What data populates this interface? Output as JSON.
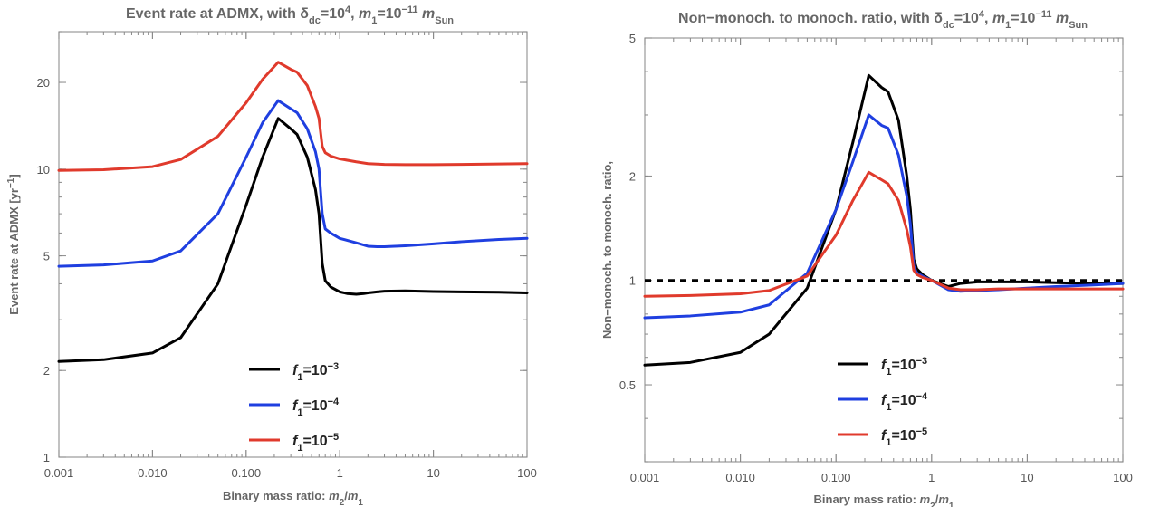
{
  "chart_data": [
    {
      "type": "line",
      "title": {
        "pre": "Event rate at ADMX, with δ",
        "sub1": "dc",
        "mid1": "=10",
        "sup1": "4",
        "mid2": ", m",
        "sub2": "1",
        "mid3": "=10",
        "sup2": "−11",
        "mid4": " m",
        "sub3": "Sun"
      },
      "xlabel": {
        "pre": "Binary mass ratio: m",
        "sub1": "2",
        "mid": "/m",
        "sub2": "1"
      },
      "ylabel": {
        "pre": "Event rate at ADMX [yr",
        "sup": "−1",
        "post": "]"
      },
      "x_scale": "log",
      "y_scale": "log",
      "xlim": [
        0.001,
        100
      ],
      "ylim": [
        1,
        30
      ],
      "x_ticks": [
        0.001,
        0.01,
        0.1,
        1,
        10,
        100
      ],
      "x_tick_labels": [
        "0.001",
        "0.010",
        "0.100",
        "1",
        "10",
        "100"
      ],
      "y_ticks": [
        1,
        2,
        5,
        10,
        20
      ],
      "y_tick_labels": [
        "1",
        "2",
        "5",
        "10",
        "20"
      ],
      "legend_position": "bottom-center",
      "series": [
        {
          "name": {
            "pre": "f",
            "sub": "1",
            "mid": "=10",
            "sup": "−3"
          },
          "color": "#000000",
          "x": [
            0.001,
            0.003,
            0.01,
            0.02,
            0.05,
            0.1,
            0.15,
            0.22,
            0.3,
            0.35,
            0.45,
            0.55,
            0.6,
            0.65,
            0.7,
            0.8,
            1.0,
            1.2,
            1.5,
            1.8,
            2.0,
            2.5,
            3.0,
            5,
            10,
            20,
            50,
            100
          ],
          "y": [
            2.15,
            2.18,
            2.3,
            2.6,
            4.0,
            7.5,
            11.0,
            15.0,
            13.8,
            13.2,
            11.0,
            8.5,
            7.0,
            4.7,
            4.1,
            3.9,
            3.75,
            3.7,
            3.68,
            3.7,
            3.72,
            3.75,
            3.77,
            3.78,
            3.76,
            3.75,
            3.74,
            3.72
          ]
        },
        {
          "name": {
            "pre": "f",
            "sub": "1",
            "mid": "=10",
            "sup": "−4"
          },
          "color": "#1f3fe0",
          "x": [
            0.001,
            0.003,
            0.01,
            0.02,
            0.05,
            0.1,
            0.15,
            0.22,
            0.3,
            0.35,
            0.45,
            0.55,
            0.6,
            0.65,
            0.7,
            0.8,
            1.0,
            1.5,
            2.0,
            2.5,
            3.0,
            5,
            10,
            20,
            50,
            100
          ],
          "y": [
            4.6,
            4.65,
            4.8,
            5.2,
            7.0,
            11.0,
            14.5,
            17.3,
            16.2,
            15.7,
            13.8,
            11.5,
            10.0,
            7.0,
            6.2,
            6.0,
            5.75,
            5.55,
            5.4,
            5.38,
            5.38,
            5.42,
            5.5,
            5.6,
            5.7,
            5.75
          ]
        },
        {
          "name": {
            "pre": "f",
            "sub": "1",
            "mid": "=10",
            "sup": "−5"
          },
          "color": "#e03a2c",
          "x": [
            0.001,
            0.003,
            0.01,
            0.02,
            0.05,
            0.1,
            0.15,
            0.22,
            0.3,
            0.35,
            0.45,
            0.55,
            0.6,
            0.65,
            0.7,
            0.8,
            1.0,
            1.5,
            2.0,
            3.0,
            5,
            10,
            20,
            50,
            100
          ],
          "y": [
            9.9,
            9.95,
            10.2,
            10.8,
            13.0,
            17.0,
            20.5,
            23.5,
            22.2,
            21.7,
            19.5,
            16.5,
            15.0,
            12.0,
            11.4,
            11.1,
            10.85,
            10.6,
            10.45,
            10.38,
            10.36,
            10.36,
            10.38,
            10.42,
            10.45
          ]
        }
      ]
    },
    {
      "type": "line",
      "title": {
        "pre": "Non−monoch. to monoch. ratio, with δ",
        "sub1": "dc",
        "mid1": "=10",
        "sup1": "4",
        "mid2": ", m",
        "sub2": "1",
        "mid3": "=10",
        "sup2": "−11",
        "mid4": " m",
        "sub3": "Sun"
      },
      "xlabel": {
        "pre": "Binary mass ratio: m",
        "sub1": "2",
        "mid": "/m",
        "sub2": "1"
      },
      "ylabel": {
        "pre": "Non−monoch. to monoch. ratio,",
        "sup": "",
        "post": ""
      },
      "x_scale": "log",
      "y_scale": "log",
      "xlim": [
        0.001,
        100
      ],
      "ylim": [
        0.3,
        5
      ],
      "x_ticks": [
        0.001,
        0.01,
        0.1,
        1,
        10,
        100
      ],
      "x_tick_labels": [
        "0.001",
        "0.010",
        "0.100",
        "1",
        "10",
        "100"
      ],
      "y_ticks": [
        0.5,
        1,
        2,
        5
      ],
      "y_tick_labels": [
        "0.5",
        "1",
        "2",
        "5"
      ],
      "reference_line": {
        "y": 1,
        "style": "dashed",
        "color": "#000000"
      },
      "legend_position": "bottom-center",
      "series": [
        {
          "name": {
            "pre": "f",
            "sub": "1",
            "mid": "=10",
            "sup": "−3"
          },
          "color": "#000000",
          "x": [
            0.001,
            0.003,
            0.01,
            0.02,
            0.05,
            0.1,
            0.15,
            0.22,
            0.3,
            0.35,
            0.45,
            0.55,
            0.6,
            0.65,
            0.7,
            0.8,
            1.0,
            1.5,
            2.0,
            3.0,
            5,
            10,
            20,
            50,
            100
          ],
          "y": [
            0.57,
            0.58,
            0.62,
            0.7,
            0.95,
            1.6,
            2.5,
            3.9,
            3.6,
            3.5,
            2.9,
            2.0,
            1.6,
            1.15,
            1.08,
            1.04,
            1.0,
            0.96,
            0.98,
            0.99,
            0.99,
            0.99,
            0.985,
            0.98,
            0.98
          ]
        },
        {
          "name": {
            "pre": "f",
            "sub": "1",
            "mid": "=10",
            "sup": "−4"
          },
          "color": "#1f3fe0",
          "x": [
            0.001,
            0.003,
            0.01,
            0.02,
            0.05,
            0.1,
            0.15,
            0.22,
            0.3,
            0.35,
            0.45,
            0.55,
            0.6,
            0.65,
            0.7,
            0.8,
            1.0,
            1.5,
            2.0,
            3.0,
            5,
            10,
            20,
            50,
            100
          ],
          "y": [
            0.78,
            0.79,
            0.81,
            0.85,
            1.05,
            1.6,
            2.2,
            3.0,
            2.8,
            2.75,
            2.3,
            1.75,
            1.45,
            1.1,
            1.05,
            1.03,
            1.0,
            0.94,
            0.93,
            0.935,
            0.94,
            0.95,
            0.96,
            0.97,
            0.98
          ]
        },
        {
          "name": {
            "pre": "f",
            "sub": "1",
            "mid": "=10",
            "sup": "−5"
          },
          "color": "#e03a2c",
          "x": [
            0.001,
            0.003,
            0.01,
            0.02,
            0.05,
            0.1,
            0.15,
            0.22,
            0.3,
            0.35,
            0.45,
            0.55,
            0.6,
            0.65,
            0.7,
            0.8,
            1.0,
            1.5,
            2.0,
            3.0,
            5,
            10,
            20,
            50,
            100
          ],
          "y": [
            0.9,
            0.905,
            0.915,
            0.935,
            1.03,
            1.35,
            1.7,
            2.05,
            1.95,
            1.9,
            1.7,
            1.4,
            1.25,
            1.07,
            1.04,
            1.02,
            1.0,
            0.95,
            0.94,
            0.94,
            0.945,
            0.945,
            0.945,
            0.945,
            0.945
          ]
        }
      ]
    }
  ]
}
